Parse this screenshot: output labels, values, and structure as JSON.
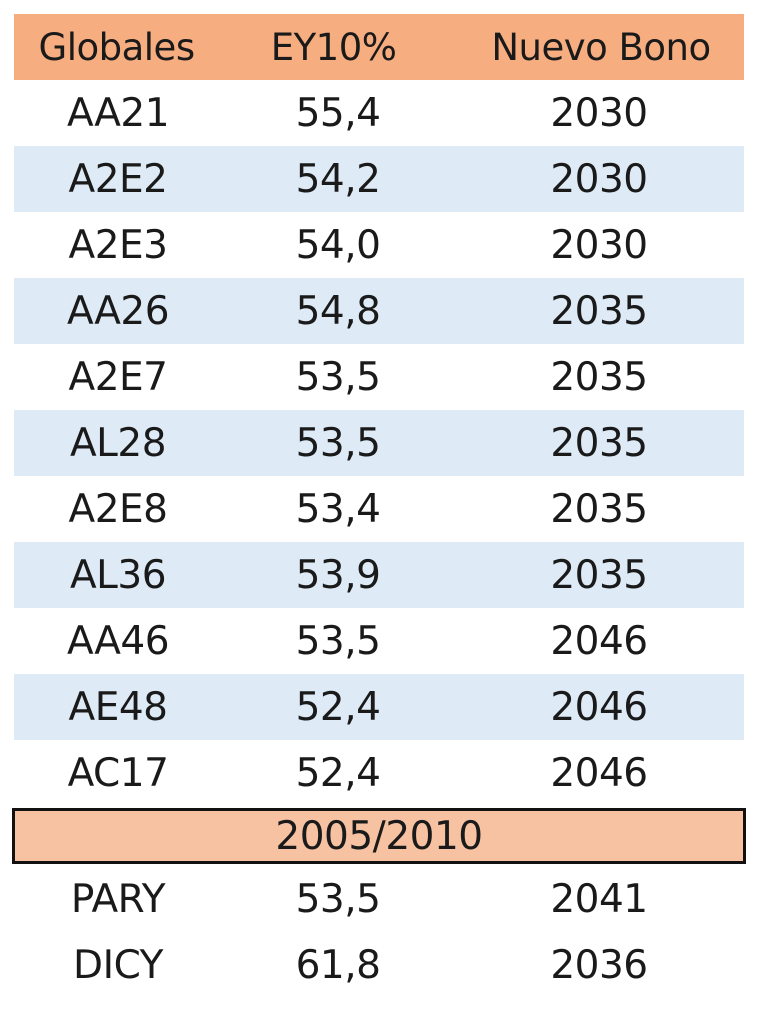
{
  "header": {
    "col1": "Globales",
    "col2": "EY10%",
    "col3": "Nuevo Bono"
  },
  "rows": [
    {
      "bono": "AA21",
      "ey": "55,4",
      "nuevo": "2030"
    },
    {
      "bono": "A2E2",
      "ey": "54,2",
      "nuevo": "2030"
    },
    {
      "bono": "A2E3",
      "ey": "54,0",
      "nuevo": "2030"
    },
    {
      "bono": "AA26",
      "ey": "54,8",
      "nuevo": "2035"
    },
    {
      "bono": "A2E7",
      "ey": "53,5",
      "nuevo": "2035"
    },
    {
      "bono": "AL28",
      "ey": "53,5",
      "nuevo": "2035"
    },
    {
      "bono": "A2E8",
      "ey": "53,4",
      "nuevo": "2035"
    },
    {
      "bono": "AL36",
      "ey": "53,9",
      "nuevo": "2035"
    },
    {
      "bono": "AA46",
      "ey": "53,5",
      "nuevo": "2046"
    },
    {
      "bono": "AE48",
      "ey": "52,4",
      "nuevo": "2046"
    },
    {
      "bono": "AC17",
      "ey": "52,4",
      "nuevo": "2046"
    }
  ],
  "section": {
    "label": "2005/2010"
  },
  "rows2": [
    {
      "bono": "PARY",
      "ey": "53,5",
      "nuevo": "2041"
    },
    {
      "bono": "DICY",
      "ey": "61,8",
      "nuevo": "2036"
    }
  ],
  "colors": {
    "header_bg": "#f6ad80",
    "shaded_row_bg": "#deebf6",
    "section_bg": "#f7c2a2"
  }
}
